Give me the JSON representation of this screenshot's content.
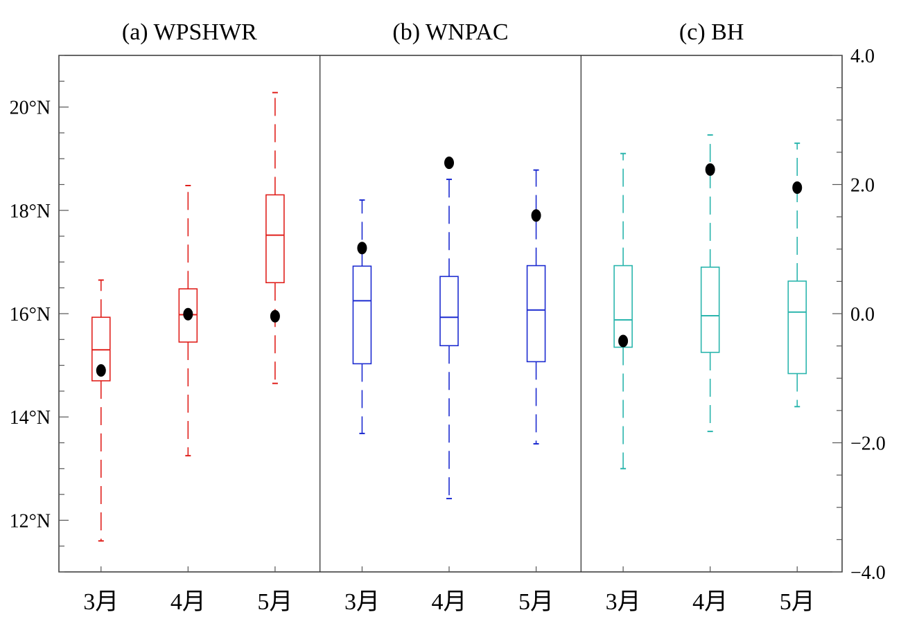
{
  "chart_data": {
    "type": "box",
    "panels": [
      {
        "title": "(a) WPSHWR",
        "color": "#e0201c",
        "categories": [
          "3月",
          "4月",
          "5月"
        ],
        "boxes": [
          {
            "min": 11.6,
            "q1": 14.7,
            "median": 15.3,
            "q3": 15.93,
            "max": 16.65,
            "mean": 14.9
          },
          {
            "min": 13.25,
            "q1": 15.45,
            "median": 15.98,
            "q3": 16.48,
            "max": 18.48,
            "mean": 15.99
          },
          {
            "min": 14.65,
            "q1": 16.6,
            "median": 17.52,
            "q3": 18.3,
            "max": 20.28,
            "mean": 15.95
          }
        ]
      },
      {
        "title": "(b) WNPAC",
        "color": "#1c2bd0",
        "categories": [
          "3月",
          "4月",
          "5月"
        ],
        "boxes": [
          {
            "min": 13.68,
            "q1": 15.03,
            "median": 16.25,
            "q3": 16.92,
            "max": 18.2,
            "mean": 17.27
          },
          {
            "min": 12.42,
            "q1": 15.38,
            "median": 15.93,
            "q3": 16.72,
            "max": 18.6,
            "mean": 18.92
          },
          {
            "min": 13.48,
            "q1": 15.07,
            "median": 16.07,
            "q3": 16.93,
            "max": 18.78,
            "mean": 17.9
          }
        ]
      },
      {
        "title": "(c) BH",
        "color": "#2ab5ad",
        "categories": [
          "3月",
          "4月",
          "5月"
        ],
        "boxes": [
          {
            "min": 13.0,
            "q1": 15.35,
            "median": 15.88,
            "q3": 16.93,
            "max": 19.1,
            "mean": 15.47
          },
          {
            "min": 13.72,
            "q1": 15.25,
            "median": 15.96,
            "q3": 16.9,
            "max": 19.46,
            "mean": 18.79
          },
          {
            "min": 14.2,
            "q1": 14.84,
            "median": 16.03,
            "q3": 16.63,
            "max": 19.3,
            "mean": 18.44
          }
        ]
      }
    ],
    "y_left": {
      "range": [
        11,
        21
      ],
      "ticks": [
        {
          "value": 12,
          "label": "12°N"
        },
        {
          "value": 14,
          "label": "14°N"
        },
        {
          "value": 16,
          "label": "16°N"
        },
        {
          "value": 18,
          "label": "18°N"
        },
        {
          "value": 20,
          "label": "20°N"
        }
      ],
      "minor_step": 0.5
    },
    "y_right": {
      "range": [
        -4,
        4
      ],
      "ticks": [
        {
          "value": 4,
          "label": "4.0"
        },
        {
          "value": 2,
          "label": "2.0"
        },
        {
          "value": 0,
          "label": "0.0"
        },
        {
          "value": -2,
          "label": "−2.0"
        },
        {
          "value": -4,
          "label": "−4.0"
        }
      ],
      "minor_step": 0.5
    }
  }
}
